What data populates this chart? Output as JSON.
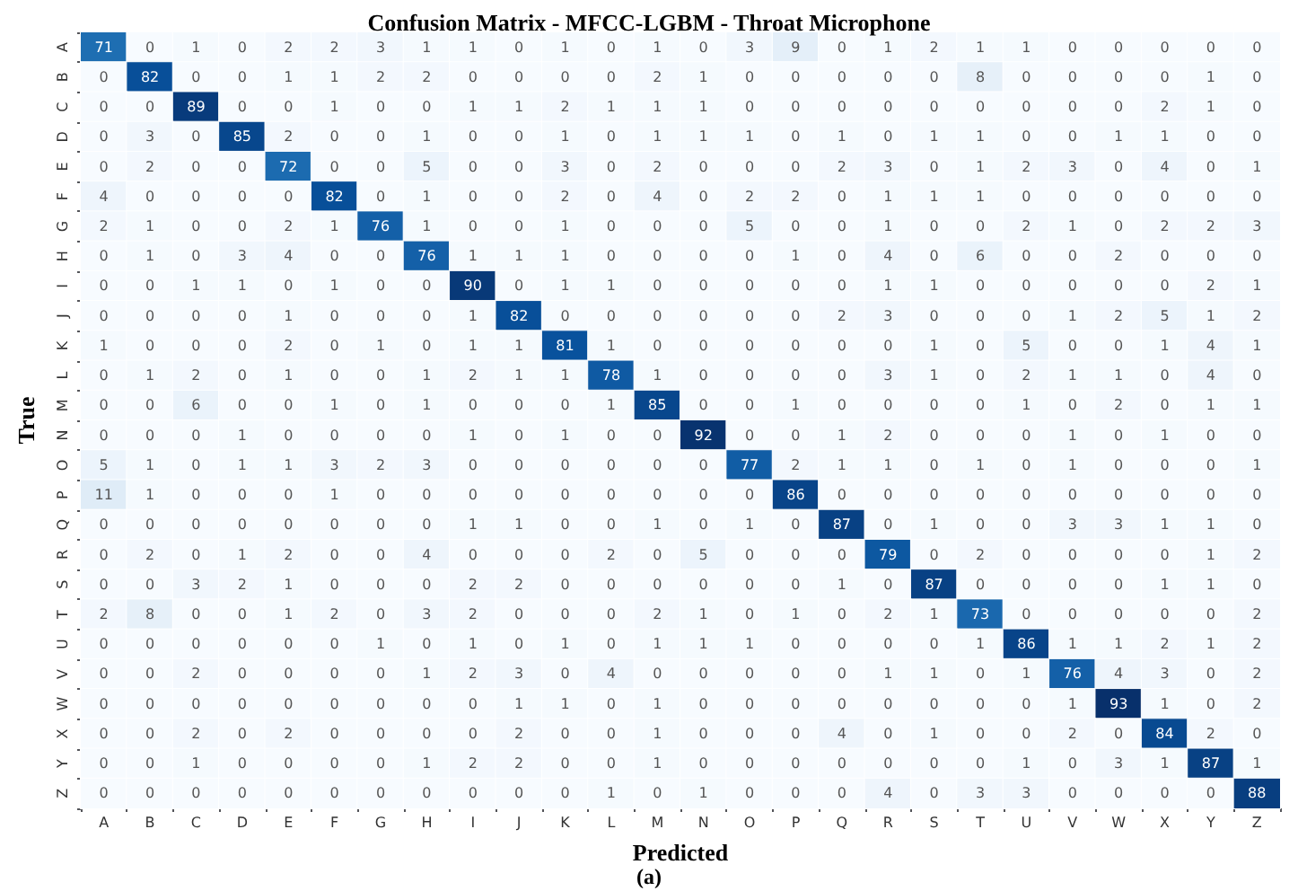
{
  "chart_data": {
    "type": "heatmap",
    "title": "Confusion Matrix - MFCC-LGBM - Throat Microphone",
    "xlabel": "Predicted",
    "ylabel": "True",
    "annotations": [
      "(a)"
    ],
    "data_labels": true,
    "categories": [
      "A",
      "B",
      "C",
      "D",
      "E",
      "F",
      "G",
      "H",
      "I",
      "J",
      "K",
      "L",
      "M",
      "N",
      "O",
      "P",
      "Q",
      "R",
      "S",
      "T",
      "U",
      "V",
      "W",
      "X",
      "Y",
      "Z"
    ],
    "y_categories": [
      "A",
      "B",
      "C",
      "D",
      "E",
      "F",
      "G",
      "H",
      "I",
      "J",
      "K",
      "L",
      "M",
      "N",
      "O",
      "P",
      "Q",
      "R",
      "S",
      "T",
      "U",
      "V",
      "W",
      "X",
      "Y",
      "Z"
    ],
    "cells": [
      [
        71,
        0,
        1,
        0,
        2,
        2,
        3,
        1,
        1,
        0,
        1,
        0,
        1,
        0,
        3,
        9,
        0,
        1,
        2,
        1,
        1,
        0,
        0,
        0,
        0,
        0
      ],
      [
        0,
        82,
        0,
        0,
        1,
        1,
        2,
        2,
        0,
        0,
        0,
        0,
        2,
        1,
        0,
        0,
        0,
        0,
        0,
        8,
        0,
        0,
        0,
        0,
        1,
        0
      ],
      [
        0,
        0,
        89,
        0,
        0,
        1,
        0,
        0,
        1,
        1,
        2,
        1,
        1,
        1,
        0,
        0,
        0,
        0,
        0,
        0,
        0,
        0,
        0,
        2,
        1,
        0
      ],
      [
        0,
        3,
        0,
        85,
        2,
        0,
        0,
        1,
        0,
        0,
        1,
        0,
        1,
        1,
        1,
        0,
        1,
        0,
        1,
        1,
        0,
        0,
        1,
        1,
        0,
        0
      ],
      [
        0,
        2,
        0,
        0,
        72,
        0,
        0,
        5,
        0,
        0,
        3,
        0,
        2,
        0,
        0,
        0,
        2,
        3,
        0,
        1,
        2,
        3,
        0,
        4,
        0,
        1
      ],
      [
        4,
        0,
        0,
        0,
        0,
        82,
        0,
        1,
        0,
        0,
        2,
        0,
        4,
        0,
        2,
        2,
        0,
        1,
        1,
        1,
        0,
        0,
        0,
        0,
        0,
        0
      ],
      [
        2,
        1,
        0,
        0,
        2,
        1,
        76,
        1,
        0,
        0,
        1,
        0,
        0,
        0,
        5,
        0,
        0,
        1,
        0,
        0,
        2,
        1,
        0,
        2,
        2,
        3
      ],
      [
        0,
        1,
        0,
        3,
        4,
        0,
        0,
        76,
        1,
        1,
        1,
        0,
        0,
        0,
        0,
        1,
        0,
        4,
        0,
        6,
        0,
        0,
        2,
        0,
        0,
        0
      ],
      [
        0,
        0,
        1,
        1,
        0,
        1,
        0,
        0,
        90,
        0,
        1,
        1,
        0,
        0,
        0,
        0,
        0,
        1,
        1,
        0,
        0,
        0,
        0,
        0,
        2,
        1
      ],
      [
        0,
        0,
        0,
        0,
        1,
        0,
        0,
        0,
        1,
        82,
        0,
        0,
        0,
        0,
        0,
        0,
        2,
        3,
        0,
        0,
        0,
        1,
        2,
        5,
        1,
        2
      ],
      [
        1,
        0,
        0,
        0,
        2,
        0,
        1,
        0,
        1,
        1,
        81,
        1,
        0,
        0,
        0,
        0,
        0,
        0,
        1,
        0,
        5,
        0,
        0,
        1,
        4,
        1
      ],
      [
        0,
        1,
        2,
        0,
        1,
        0,
        0,
        1,
        2,
        1,
        1,
        78,
        1,
        0,
        0,
        0,
        0,
        3,
        1,
        0,
        2,
        1,
        1,
        0,
        4,
        0
      ],
      [
        0,
        0,
        6,
        0,
        0,
        1,
        0,
        1,
        0,
        0,
        0,
        1,
        85,
        0,
        0,
        1,
        0,
        0,
        0,
        0,
        1,
        0,
        2,
        0,
        1,
        1
      ],
      [
        0,
        0,
        0,
        1,
        0,
        0,
        0,
        0,
        1,
        0,
        1,
        0,
        0,
        92,
        0,
        0,
        1,
        2,
        0,
        0,
        0,
        1,
        0,
        1,
        0,
        0
      ],
      [
        5,
        1,
        0,
        1,
        1,
        3,
        2,
        3,
        0,
        0,
        0,
        0,
        0,
        0,
        77,
        2,
        1,
        1,
        0,
        1,
        0,
        1,
        0,
        0,
        0,
        1
      ],
      [
        11,
        1,
        0,
        0,
        0,
        1,
        0,
        0,
        0,
        0,
        0,
        0,
        0,
        0,
        0,
        86,
        0,
        0,
        0,
        0,
        0,
        0,
        0,
        0,
        0,
        0
      ],
      [
        0,
        0,
        0,
        0,
        0,
        0,
        0,
        0,
        1,
        1,
        0,
        0,
        1,
        0,
        1,
        0,
        87,
        0,
        1,
        0,
        0,
        3,
        3,
        1,
        1,
        0
      ],
      [
        0,
        2,
        0,
        1,
        2,
        0,
        0,
        4,
        0,
        0,
        0,
        2,
        0,
        5,
        0,
        0,
        0,
        79,
        0,
        2,
        0,
        0,
        0,
        0,
        1,
        2
      ],
      [
        0,
        0,
        3,
        2,
        1,
        0,
        0,
        0,
        2,
        2,
        0,
        0,
        0,
        0,
        0,
        0,
        1,
        0,
        87,
        0,
        0,
        0,
        0,
        1,
        1,
        0
      ],
      [
        2,
        8,
        0,
        0,
        1,
        2,
        0,
        3,
        2,
        0,
        0,
        0,
        2,
        1,
        0,
        1,
        0,
        2,
        1,
        73,
        0,
        0,
        0,
        0,
        0,
        2
      ],
      [
        0,
        0,
        0,
        0,
        0,
        0,
        1,
        0,
        1,
        0,
        1,
        0,
        1,
        1,
        1,
        0,
        0,
        0,
        0,
        1,
        86,
        1,
        1,
        2,
        1,
        2
      ],
      [
        0,
        0,
        2,
        0,
        0,
        0,
        0,
        1,
        2,
        3,
        0,
        4,
        0,
        0,
        0,
        0,
        0,
        1,
        1,
        0,
        1,
        76,
        4,
        3,
        0,
        2
      ],
      [
        0,
        0,
        0,
        0,
        0,
        0,
        0,
        0,
        0,
        1,
        1,
        0,
        1,
        0,
        0,
        0,
        0,
        0,
        0,
        0,
        0,
        1,
        93,
        1,
        0,
        2
      ],
      [
        0,
        0,
        2,
        0,
        2,
        0,
        0,
        0,
        0,
        2,
        0,
        0,
        1,
        0,
        0,
        0,
        4,
        0,
        1,
        0,
        0,
        2,
        0,
        84,
        2,
        0
      ],
      [
        0,
        0,
        1,
        0,
        0,
        0,
        0,
        1,
        2,
        2,
        0,
        0,
        1,
        0,
        0,
        0,
        0,
        0,
        0,
        0,
        1,
        0,
        3,
        1,
        87,
        1
      ],
      [
        0,
        0,
        0,
        0,
        0,
        0,
        0,
        0,
        0,
        0,
        0,
        1,
        0,
        1,
        0,
        0,
        0,
        4,
        0,
        3,
        3,
        0,
        0,
        0,
        0,
        88
      ]
    ]
  }
}
